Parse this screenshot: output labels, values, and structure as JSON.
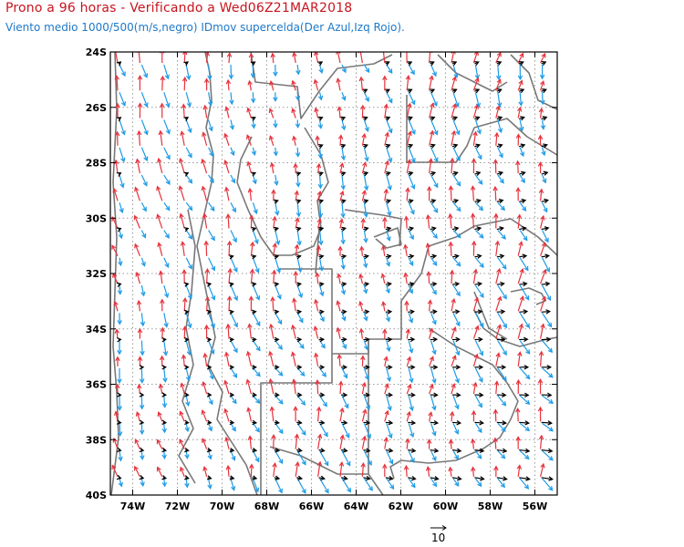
{
  "header": {
    "title": "Prono a 96 horas - Verificando a Wed06Z21MAR2018",
    "subtitle": "Viento medio 1000/500(m/s,negro) IDmov supercelda(Der Azul,Izq Rojo)."
  },
  "map": {
    "lon_range": [
      -75,
      -55
    ],
    "lat_range": [
      -40,
      -24
    ],
    "lat_ticks": [
      "24S",
      "26S",
      "28S",
      "30S",
      "32S",
      "34S",
      "36S",
      "38S",
      "40S"
    ],
    "lon_ticks": [
      "74W",
      "72W",
      "70W",
      "68W",
      "66W",
      "64W",
      "62W",
      "60W",
      "58W",
      "56W"
    ],
    "grid_lines": true,
    "vector_scale_label": "10"
  },
  "colors": {
    "title": "#c8141e",
    "subtitle": "#1e78c8",
    "mean_wind": "#000000",
    "right_mover": "#1e9be6",
    "left_mover": "#e6323c",
    "borders": "#787878",
    "grid": "#9a9a9a"
  }
}
